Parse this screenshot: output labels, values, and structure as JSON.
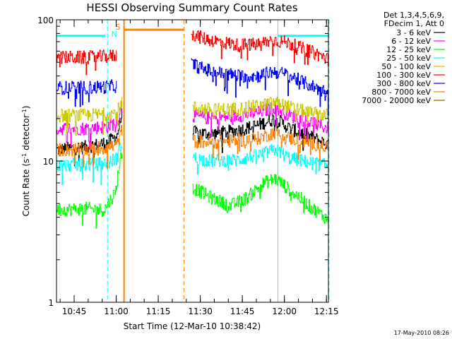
{
  "chart_data": {
    "type": "line",
    "title": "HESSI Observing Summary Count Rates",
    "xlabel": "Start Time (12-Mar-10 10:38:42)",
    "ylabel_main": "Count Rate (s",
    "ylabel_sup1": "-1",
    "ylabel_mid": " detector",
    "ylabel_sup2": "-1",
    "ylabel_end": ")",
    "yscale": "log",
    "ylim": [
      1,
      100
    ],
    "xlim_min": [
      0,
      97
    ],
    "x_tick_labels": [
      {
        "label": "10:45",
        "min": 6.3
      },
      {
        "label": "11:00",
        "min": 21.3
      },
      {
        "label": "11:15",
        "min": 36.3
      },
      {
        "label": "11:30",
        "min": 51.3
      },
      {
        "label": "11:45",
        "min": 66.3
      },
      {
        "label": "12:00",
        "min": 81.3
      },
      {
        "label": "12:15",
        "min": 96.3
      }
    ],
    "y_tick_labels": [
      {
        "label": "100",
        "value": 100
      },
      {
        "label": "10",
        "value": 10
      },
      {
        "label": "1",
        "value": 1
      }
    ],
    "legend_header": [
      "Det 1,3,4,5,6,9,",
      "FDecim 1, Att 0"
    ],
    "series": [
      {
        "name": "3 - 6 keV",
        "color": "#000000",
        "segments": [
          {
            "x": [
              0,
              10,
              18,
              21.5,
              23.5
            ],
            "y": [
              12,
              12.5,
              13.5,
              15,
              22
            ]
          },
          {
            "x": [
              48.5,
              55,
              65,
              72,
              78,
              83,
              90,
              97
            ],
            "y": [
              16,
              15.5,
              16.5,
              18,
              20,
              17,
              15,
              13
            ]
          }
        ]
      },
      {
        "name": "6 - 12 keV",
        "color": "#ff00ff",
        "segments": [
          {
            "x": [
              0,
              10,
              18,
              21.5,
              23.5
            ],
            "y": [
              17,
              17,
              17.5,
              19,
              25
            ]
          },
          {
            "x": [
              48.5,
              55,
              65,
              72,
              78,
              83,
              90,
              97
            ],
            "y": [
              21,
              20,
              21,
              22,
              24,
              21,
              19,
              17
            ]
          }
        ]
      },
      {
        "name": "12 - 25 keV",
        "color": "#00ff00",
        "segments": [
          {
            "x": [
              0,
              10,
              17,
              21,
              23.5
            ],
            "y": [
              4.5,
              4.6,
              4.5,
              6,
              12
            ]
          },
          {
            "x": [
              48.5,
              55,
              62,
              68,
              74,
              78,
              82,
              90,
              97
            ],
            "y": [
              6.5,
              5.5,
              4.8,
              5.5,
              7,
              7.5,
              6.5,
              4.8,
              3.8
            ]
          }
        ]
      },
      {
        "name": "25 - 50 keV",
        "color": "#00ffff",
        "segments": [
          {
            "x": [
              0,
              10,
              18,
              21.5,
              23.5
            ],
            "y": [
              9.3,
              9.4,
              9.6,
              10.5,
              14
            ]
          },
          {
            "x": [
              48.5,
              55,
              65,
              72,
              78,
              83,
              90,
              97
            ],
            "y": [
              10.5,
              10,
              10.2,
              11,
              12,
              10.5,
              9.8,
              9.2
            ]
          }
        ]
      },
      {
        "name": "50 - 100 keV",
        "color": "#c8c800",
        "segments": [
          {
            "x": [
              0,
              10,
              18,
              21.5,
              23.5
            ],
            "y": [
              21,
              21,
              21.5,
              22,
              27
            ]
          },
          {
            "x": [
              48.5,
              55,
              65,
              72,
              78,
              83,
              90,
              97
            ],
            "y": [
              24,
              23,
              23.5,
              24.5,
              26,
              24,
              22,
              21
            ]
          }
        ]
      },
      {
        "name": "100 - 300 keV",
        "color": "#ff0000",
        "segments": [
          {
            "x": [
              0,
              10,
              18,
              21.5
            ],
            "y": [
              54,
              54,
              55,
              56
            ]
          },
          {
            "x": [
              48,
              52,
              58,
              65,
              72,
              77,
              82,
              88,
              94,
              97
            ],
            "y": [
              80,
              74,
              70,
              66,
              67,
              72,
              69,
              62,
              56,
              52
            ]
          }
        ]
      },
      {
        "name": "300 - 800 keV",
        "color": "#0000ff",
        "segments": [
          {
            "x": [
              0,
              10,
              18,
              21.5
            ],
            "y": [
              33,
              33,
              33.5,
              34
            ]
          },
          {
            "x": [
              48,
              52,
              58,
              65,
              72,
              77,
              82,
              88,
              94,
              97
            ],
            "y": [
              49,
              45,
              42,
              40,
              40,
              43,
              41,
              36,
              32,
              30
            ]
          }
        ]
      },
      {
        "name": "800 - 7000 keV",
        "color": "#ff8000",
        "segments": [
          {
            "x": [
              0,
              10,
              18,
              21.5,
              23.5
            ],
            "y": [
              12,
              12,
              12.5,
              13,
              17
            ]
          },
          {
            "x": [
              48.5,
              55,
              65,
              72,
              78,
              83,
              90,
              97
            ],
            "y": [
              14,
              13.5,
              14,
              14.5,
              16,
              14.5,
              13.5,
              12.5
            ]
          }
        ]
      },
      {
        "name": "7000 - 20000 keV",
        "color": "#806000",
        "segments": []
      }
    ],
    "markers": {
      "saa_level_y": 77,
      "saa_segments": [
        [
          0,
          17.5
        ],
        [
          79,
          97
        ]
      ],
      "night_x": [
        0,
        79
      ],
      "night_dashed_x": [
        18.2,
        97.2
      ],
      "attenuator_x": [
        24.1,
        45.5
      ],
      "attenuator_level_y": 85,
      "flag_s": "S",
      "flag_n": "N",
      "flag_s_color": "#ff8000",
      "flag_n_color": "#00ffff",
      "saa_color": "#00ffff",
      "attenuator_color": "#ff8000"
    }
  },
  "footer": {
    "date_stamp": "17-May-2010 08:26"
  }
}
